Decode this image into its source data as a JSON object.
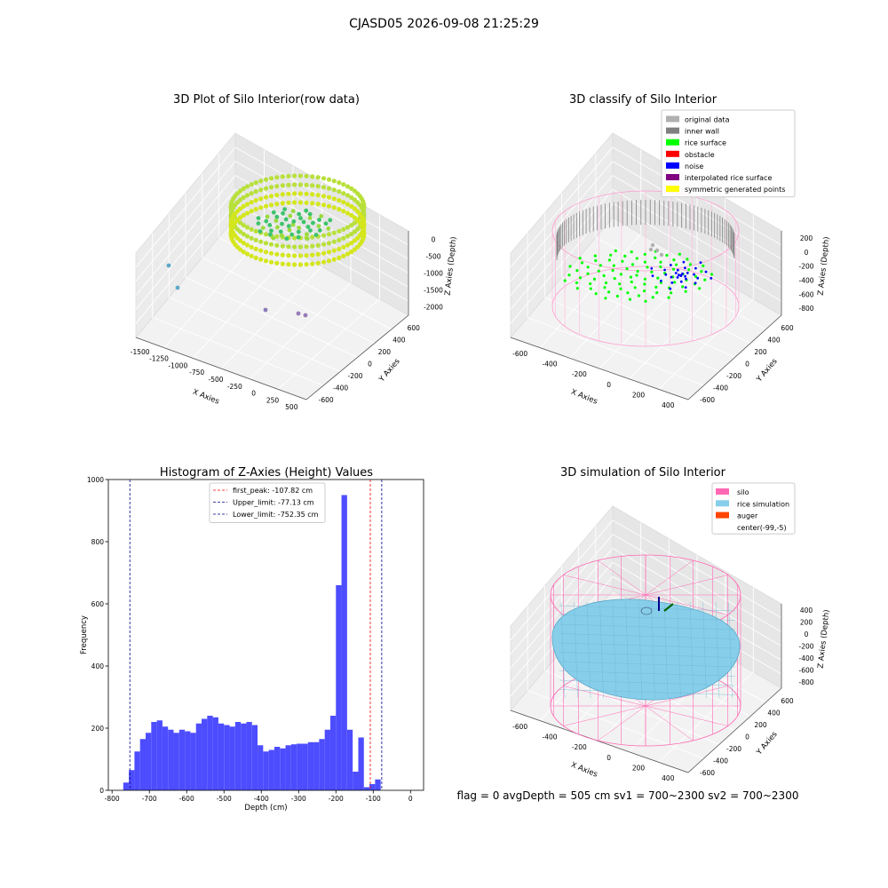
{
  "suptitle": "CJASD05 2026-09-08 21:25:29",
  "colors": {
    "hist_bar": "#4d4dff",
    "first_peak": "#ff0000",
    "limit_line": "#00008b",
    "silo": "#ff69b4",
    "rice_sim": "#87ceeb",
    "auger": "#ff4500"
  },
  "chart_data": [
    {
      "type": "scatter",
      "title": "3D Plot of Silo Interior(row data)",
      "xlabel": "X Axies",
      "ylabel": "Y Axies",
      "zlabel": "Z Axies (Depth)",
      "x_ticks": [
        "-1500",
        "-1250",
        "-1000",
        "-750",
        "-500",
        "-250",
        "0",
        "250",
        "500"
      ],
      "y_ticks": [
        "-600",
        "-400",
        "-200",
        "0",
        "200",
        "400",
        "600"
      ],
      "z_ticks": [
        "0",
        "-500",
        "-1000",
        "-1500",
        "-2000"
      ]
    },
    {
      "type": "scatter",
      "title": "3D classify of Silo Interior",
      "xlabel": "X Axies",
      "ylabel": "Y Axies",
      "zlabel": "Z Axies (Depth)",
      "x_ticks": [
        "-600",
        "-400",
        "-200",
        "0",
        "200",
        "400"
      ],
      "y_ticks": [
        "-600",
        "-400",
        "-200",
        "0",
        "200",
        "400",
        "600"
      ],
      "z_ticks": [
        "200",
        "0",
        "-200",
        "-400",
        "-600",
        "-800"
      ],
      "legend": [
        {
          "label": "original data",
          "color": "#b0b0b0"
        },
        {
          "label": "inner wall",
          "color": "#808080"
        },
        {
          "label": "rice surface",
          "color": "#00ff00"
        },
        {
          "label": "obstacle",
          "color": "#ff0000"
        },
        {
          "label": "noise",
          "color": "#0000ff"
        },
        {
          "label": "interpolated rice surface",
          "color": "#800080"
        },
        {
          "label": "symmetric generated points",
          "color": "#ffff00"
        }
      ]
    },
    {
      "type": "bar",
      "title": "Histogram of Z-Axies (Height) Values",
      "xlabel": "Depth (cm)",
      "ylabel": "Frequency",
      "xlim": [
        -810,
        35
      ],
      "ylim": [
        0,
        1000
      ],
      "x_ticks": [
        -800,
        -700,
        -600,
        -500,
        -400,
        -300,
        -200,
        -100,
        0
      ],
      "y_ticks": [
        0,
        200,
        400,
        600,
        800,
        1000
      ],
      "bin_start": -770,
      "bin_width": 15,
      "values": [
        25,
        65,
        125,
        165,
        185,
        220,
        225,
        205,
        195,
        185,
        195,
        190,
        185,
        215,
        230,
        240,
        235,
        215,
        210,
        205,
        220,
        215,
        220,
        210,
        145,
        125,
        130,
        140,
        135,
        145,
        148,
        150,
        150,
        155,
        155,
        165,
        195,
        240,
        660,
        950,
        195,
        60,
        170,
        10,
        20,
        35
      ],
      "vlines": [
        {
          "value": -107.82,
          "legend": "first_peak: -107.82 cm",
          "color": "#ff0000"
        },
        {
          "value": -77.13,
          "legend": "Upper_limit: -77.13 cm",
          "color": "#00008b"
        },
        {
          "value": -752.35,
          "legend": "Lower_limit: -752.35 cm",
          "color": "#00008b"
        }
      ]
    },
    {
      "type": "scatter",
      "title": "3D simulation of Silo Interior",
      "xlabel": "X Axies",
      "ylabel": "Y Axies",
      "zlabel": "Z Axies (Depth)",
      "x_ticks": [
        "-600",
        "-400",
        "-200",
        "0",
        "200",
        "400"
      ],
      "y_ticks": [
        "-600",
        "-400",
        "-200",
        "0",
        "200",
        "400",
        "600"
      ],
      "z_ticks": [
        "400",
        "200",
        "0",
        "-200",
        "-400",
        "-600",
        "-800"
      ],
      "legend": [
        {
          "label": "silo",
          "color": "#ff69b4"
        },
        {
          "label": "rice simulation",
          "color": "#87ceeb"
        },
        {
          "label": "auger",
          "color": "#ff4500"
        },
        {
          "label": "center(-99,-5)",
          "color": ""
        }
      ]
    }
  ],
  "status_line": "flag = 0     avgDepth = 505 cm  sv1 = 700~2300  sv2 = 700~2300"
}
